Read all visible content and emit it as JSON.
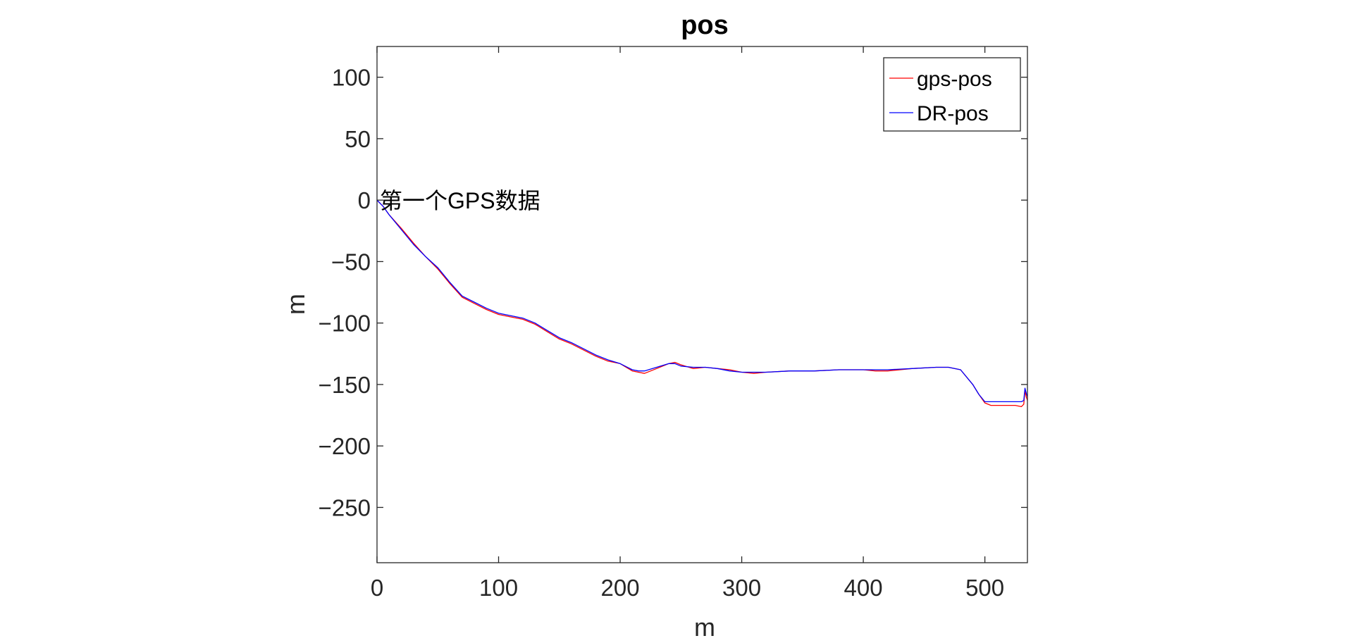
{
  "chart_data": {
    "type": "line",
    "title": "pos",
    "xlabel": "m",
    "ylabel": "m",
    "xlim": [
      0,
      535
    ],
    "ylim": [
      -295,
      125
    ],
    "xticks": [
      0,
      100,
      200,
      300,
      400,
      500
    ],
    "yticks": [
      100,
      50,
      0,
      -50,
      -100,
      -150,
      -200,
      -250
    ],
    "xtick_labels": [
      "0",
      "100",
      "200",
      "300",
      "400",
      "500"
    ],
    "ytick_labels": [
      "100",
      "50",
      "0",
      "-50",
      "-100",
      "-150",
      "-200",
      "-250"
    ],
    "grid": false,
    "legend_position": "top-right",
    "annotation": {
      "text": "第一个GPS数据",
      "x": 0,
      "y": 0
    },
    "series": [
      {
        "name": "gps-pos",
        "color": "#ff0000",
        "x": [
          0,
          5,
          10,
          20,
          30,
          40,
          50,
          60,
          70,
          80,
          90,
          100,
          110,
          120,
          130,
          140,
          150,
          160,
          170,
          180,
          190,
          200,
          210,
          215,
          220,
          230,
          240,
          245,
          250,
          260,
          270,
          280,
          290,
          300,
          310,
          320,
          340,
          360,
          380,
          400,
          410,
          420,
          440,
          460,
          470,
          480,
          490,
          495,
          500,
          505,
          510,
          520,
          525,
          530,
          532,
          533,
          534,
          535
        ],
        "y": [
          0,
          -5,
          -12,
          -23,
          -35,
          -46,
          -56,
          -68,
          -79,
          -84,
          -89,
          -93,
          -95,
          -97,
          -101,
          -107,
          -113,
          -117,
          -122,
          -127,
          -131,
          -133,
          -139,
          -140,
          -141,
          -137,
          -133,
          -132,
          -134,
          -137,
          -136,
          -137,
          -138,
          -140,
          -141,
          -140,
          -139,
          -139,
          -138,
          -138,
          -139,
          -139,
          -137,
          -136,
          -136,
          -138,
          -150,
          -158,
          -165,
          -167,
          -167,
          -167,
          -167,
          -168,
          -166,
          -155,
          -160,
          -163
        ]
      },
      {
        "name": "DR-pos",
        "color": "#0000ff",
        "x": [
          0,
          5,
          10,
          20,
          30,
          40,
          50,
          60,
          70,
          80,
          90,
          100,
          110,
          120,
          130,
          140,
          150,
          160,
          170,
          180,
          190,
          200,
          210,
          215,
          220,
          230,
          240,
          245,
          250,
          260,
          270,
          280,
          290,
          300,
          310,
          320,
          340,
          360,
          380,
          400,
          410,
          420,
          440,
          460,
          470,
          480,
          490,
          495,
          500,
          505,
          510,
          520,
          525,
          530,
          532,
          533,
          534,
          535
        ],
        "y": [
          0,
          -5,
          -12,
          -24,
          -36,
          -46,
          -55,
          -67,
          -78,
          -83,
          -88,
          -92,
          -94,
          -96,
          -100,
          -106,
          -112,
          -116,
          -121,
          -126,
          -130,
          -133,
          -138,
          -139,
          -139,
          -136,
          -133,
          -133,
          -135,
          -136,
          -136,
          -137,
          -139,
          -140,
          -140,
          -140,
          -139,
          -139,
          -138,
          -138,
          -138,
          -138,
          -137,
          -136,
          -136,
          -138,
          -150,
          -158,
          -164,
          -164,
          -164,
          -164,
          -164,
          -164,
          -163,
          -153,
          -157,
          -160
        ]
      }
    ]
  }
}
